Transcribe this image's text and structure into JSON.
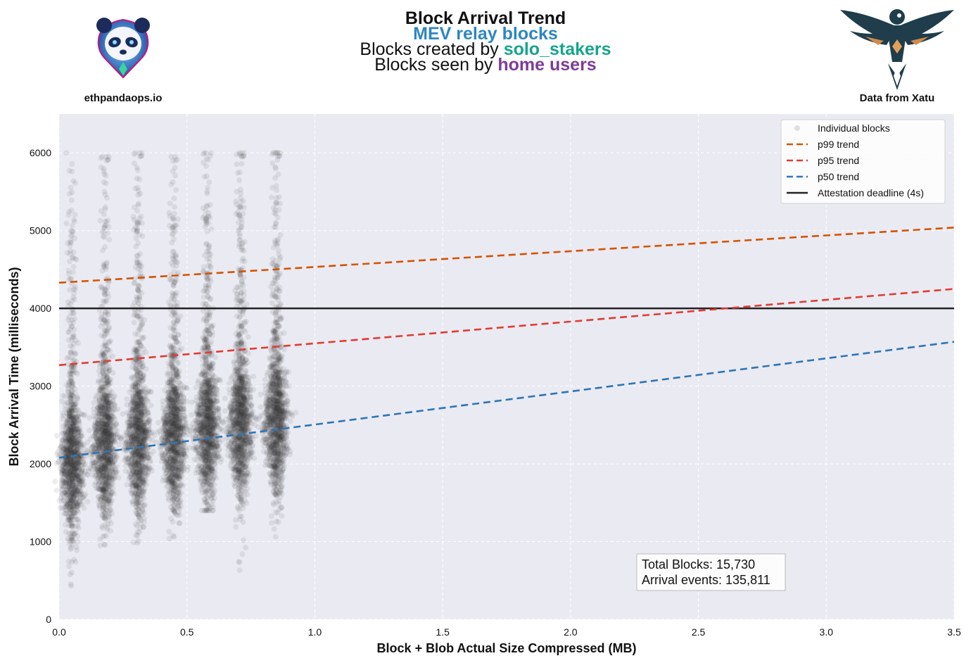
{
  "header": {
    "title": "Block Arrival Trend",
    "subtitle_1": {
      "text": "MEV relay blocks",
      "color": "#2e86c1"
    },
    "subtitle_2": {
      "prefix": "Blocks created by ",
      "highlight": "solo_stakers",
      "color": "#17a589"
    },
    "subtitle_3": {
      "prefix": "Blocks seen by ",
      "highlight": "home users",
      "color": "#7d3c98"
    },
    "left_logo": {
      "icon": "panda-logo-icon",
      "caption": "ethpandaops.io"
    },
    "right_logo": {
      "icon": "bird-logo-icon",
      "caption": "Data from Xatu"
    }
  },
  "chart_data": {
    "type": "scatter",
    "xlabel": "Block + Blob Actual Size Compressed (MB)",
    "ylabel": "Block Arrival Time (milliseconds)",
    "xlim": [
      0,
      3.5
    ],
    "ylim": [
      0,
      6500
    ],
    "xticks": [
      "0.0",
      "0.5",
      "1.0",
      "1.5",
      "2.0",
      "2.5",
      "3.0",
      "3.5"
    ],
    "yticks": [
      "0",
      "1000",
      "2000",
      "3000",
      "4000",
      "5000",
      "6000"
    ],
    "grid": true,
    "background": "#eaeaf2",
    "scatter_color": "#3b3b3b",
    "clusters": [
      {
        "x": 0.05,
        "median_ms": 2000,
        "min_ms": 330,
        "max_ms": 6000
      },
      {
        "x": 0.18,
        "median_ms": 2250,
        "min_ms": 950,
        "max_ms": 5950
      },
      {
        "x": 0.31,
        "median_ms": 2300,
        "min_ms": 970,
        "max_ms": 6000
      },
      {
        "x": 0.45,
        "median_ms": 2350,
        "min_ms": 970,
        "max_ms": 5950
      },
      {
        "x": 0.58,
        "median_ms": 2450,
        "min_ms": 1400,
        "max_ms": 6000
      },
      {
        "x": 0.71,
        "median_ms": 2500,
        "min_ms": 620,
        "max_ms": 6000
      },
      {
        "x": 0.85,
        "median_ms": 2550,
        "min_ms": 1050,
        "max_ms": 6000
      }
    ],
    "trend_lines": [
      {
        "name": "p99 trend",
        "color": "#d35400",
        "dashed": true,
        "x": [
          0,
          3.5
        ],
        "y": [
          4330,
          5040
        ]
      },
      {
        "name": "p95 trend",
        "color": "#e03c31",
        "dashed": true,
        "x": [
          0,
          3.5
        ],
        "y": [
          3270,
          4250
        ]
      },
      {
        "name": "p50 trend",
        "color": "#2e75b6",
        "dashed": true,
        "x": [
          0,
          3.5
        ],
        "y": [
          2080,
          3570
        ]
      }
    ],
    "reference_line": {
      "name": "Attestation deadline (4s)",
      "y": 4000,
      "color": "#222222"
    },
    "legend": {
      "position": "top-right",
      "entries": [
        "Individual blocks",
        "p99 trend",
        "p95 trend",
        "p50 trend",
        "Attestation deadline (4s)"
      ]
    },
    "annotation": {
      "position": "bottom-right",
      "lines": [
        "Total Blocks: 15,730",
        "Arrival events: 135,811"
      ]
    }
  }
}
